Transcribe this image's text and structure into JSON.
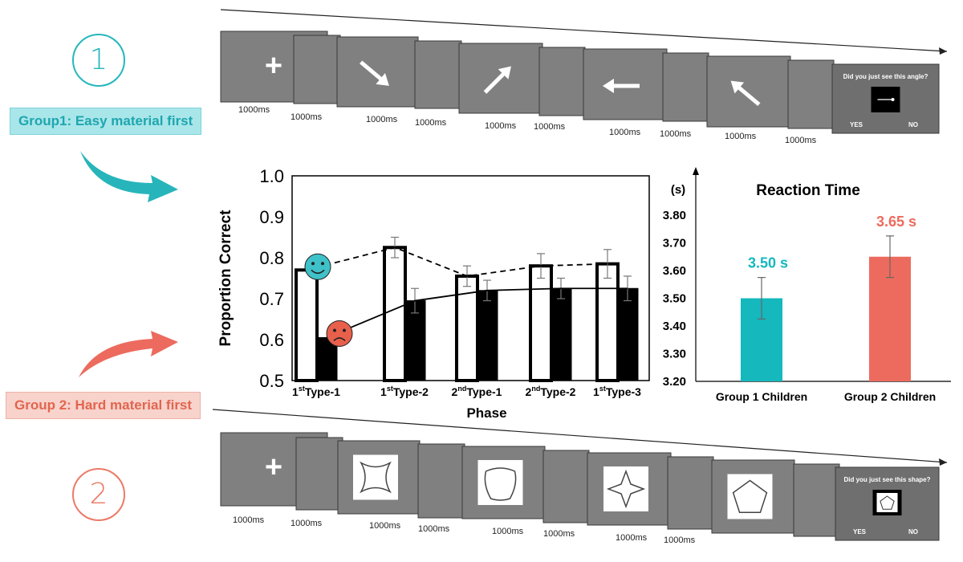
{
  "group1": {
    "number": "1",
    "label": "Group1: Easy material first",
    "color": "#25b7bc"
  },
  "group2": {
    "number": "2",
    "label": "Group 2: Hard material first",
    "color": "#eb7a67"
  },
  "sequence_top": {
    "fixation": "+",
    "durations": [
      "1000ms",
      "1000ms",
      "1000ms",
      "1000ms",
      "1000ms",
      "1000ms",
      "1000ms",
      "1000ms",
      "1000ms",
      "1000ms"
    ],
    "stimuli": [
      "arrow-down-right",
      "arrow-up-right",
      "arrow-left",
      "arrow-up-left"
    ],
    "question": "Did you just see this angle?",
    "yes": "YES",
    "no": "NO"
  },
  "sequence_bottom": {
    "fixation": "+",
    "durations": [
      "1000ms",
      "1000ms",
      "1000ms",
      "1000ms",
      "1000ms",
      "1000ms",
      "1000ms",
      "1000ms"
    ],
    "stimuli": [
      "cross-blob-shape",
      "rounded-blob-shape",
      "four-point-star-shape",
      "pentagon-shape"
    ],
    "question": "Did you just see this shape?",
    "yes": "YES",
    "no": "NO"
  },
  "chart_data": [
    {
      "type": "bar",
      "xlabel": "Phase",
      "ylabel": "Proportion  Correct",
      "ylim": [
        0.5,
        1.0
      ],
      "yticks": [
        "0.5",
        "0.6",
        "0.7",
        "0.8",
        "0.9",
        "1.0"
      ],
      "categories": [
        {
          "base": "1",
          "sup": "st",
          "rest": "Type-1"
        },
        {
          "base": "1",
          "sup": "st",
          "rest": "Type-2"
        },
        {
          "base": "2",
          "sup": "nd",
          "rest": "Type-1"
        },
        {
          "base": "2",
          "sup": "nd",
          "rest": "Type-2"
        },
        {
          "base": "1",
          "sup": "st",
          "rest": "Type-3"
        }
      ],
      "series": [
        {
          "values": [
            0.77,
            0.825,
            0.755,
            0.78,
            0.785
          ],
          "errors": [
            0,
            0.025,
            0.025,
            0.03,
            0.035
          ],
          "fill": "#ffffff",
          "line_style": "dashed",
          "marker": "happy-face-icon",
          "marker_color": "#3fc1c9"
        },
        {
          "values": [
            0.605,
            0.695,
            0.72,
            0.725,
            0.725
          ],
          "errors": [
            0,
            0.03,
            0.025,
            0.025,
            0.03
          ],
          "fill": "#000000",
          "line_style": "solid",
          "marker": "sad-face-icon",
          "marker_color": "#e8604c"
        }
      ],
      "grid": false
    },
    {
      "type": "bar",
      "title": "Reaction Time",
      "yunit": "(s)",
      "ylim": [
        3.2,
        3.8
      ],
      "yticks": [
        "3.20",
        "3.30",
        "3.40",
        "3.50",
        "3.60",
        "3.70",
        "3.80"
      ],
      "categories": [
        "Group 1 Children",
        "Group 2 Children"
      ],
      "values": [
        3.5,
        3.65
      ],
      "errors": [
        0.075,
        0.075
      ],
      "labels": [
        "3.50 s",
        "3.65 s"
      ],
      "colors": [
        "#14b8bd",
        "#ec6b5e"
      ],
      "grid": false
    }
  ]
}
